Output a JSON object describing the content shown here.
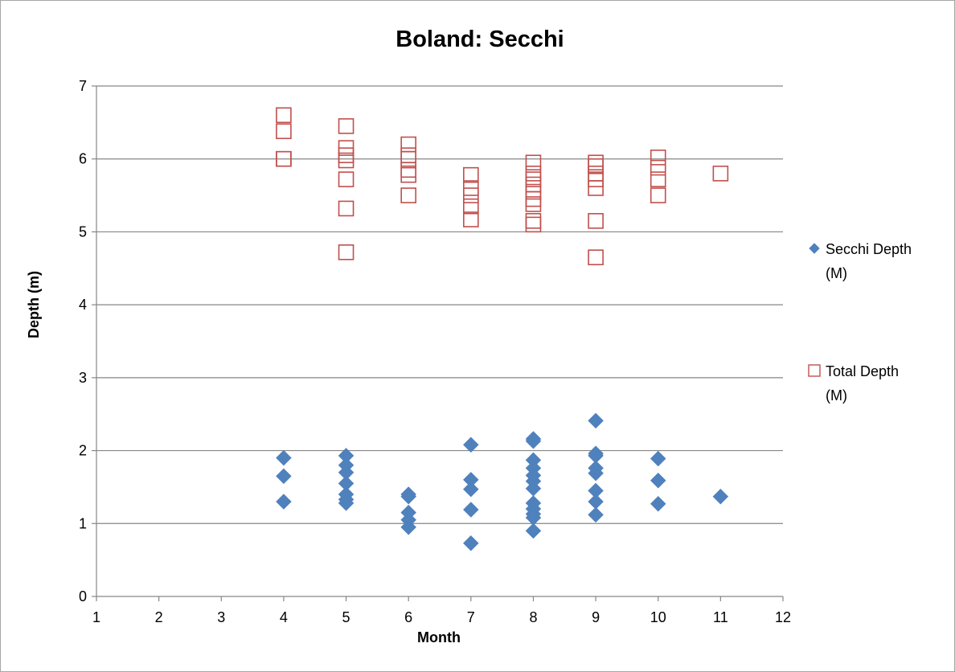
{
  "chart_data": {
    "type": "scatter",
    "title": "Boland:  Secchi",
    "xlabel": "Month",
    "ylabel": "Depth (m)",
    "xlim": [
      1,
      12
    ],
    "ylim": [
      0,
      7
    ],
    "x_ticks": [
      1,
      2,
      3,
      4,
      5,
      6,
      7,
      8,
      9,
      10,
      11,
      12
    ],
    "y_ticks": [
      0,
      1,
      2,
      3,
      4,
      5,
      6,
      7
    ],
    "grid": "horizontal",
    "legend_position": "right",
    "series": [
      {
        "name": "Secchi Depth (M)",
        "legend_lines": [
          "Secchi Depth",
          "(M)"
        ],
        "marker": "diamond",
        "color": "#4f81bd",
        "points": [
          [
            4,
            1.9
          ],
          [
            4,
            1.65
          ],
          [
            4,
            1.3
          ],
          [
            5,
            1.93
          ],
          [
            5,
            1.8
          ],
          [
            5,
            1.7
          ],
          [
            5,
            1.55
          ],
          [
            5,
            1.4
          ],
          [
            5,
            1.33
          ],
          [
            5,
            1.28
          ],
          [
            6,
            1.4
          ],
          [
            6,
            1.37
          ],
          [
            6,
            1.15
          ],
          [
            6,
            1.05
          ],
          [
            6,
            0.95
          ],
          [
            7,
            2.08
          ],
          [
            7,
            1.6
          ],
          [
            7,
            1.47
          ],
          [
            7,
            1.19
          ],
          [
            7,
            0.73
          ],
          [
            8,
            2.16
          ],
          [
            8,
            2.13
          ],
          [
            8,
            1.87
          ],
          [
            8,
            1.76
          ],
          [
            8,
            1.66
          ],
          [
            8,
            1.58
          ],
          [
            8,
            1.48
          ],
          [
            8,
            1.28
          ],
          [
            8,
            1.2
          ],
          [
            8,
            1.13
          ],
          [
            8,
            1.08
          ],
          [
            8,
            0.9
          ],
          [
            9,
            2.41
          ],
          [
            9,
            1.96
          ],
          [
            9,
            1.93
          ],
          [
            9,
            1.76
          ],
          [
            9,
            1.69
          ],
          [
            9,
            1.45
          ],
          [
            9,
            1.3
          ],
          [
            9,
            1.12
          ],
          [
            10,
            1.89
          ],
          [
            10,
            1.59
          ],
          [
            10,
            1.27
          ],
          [
            11,
            1.37
          ]
        ]
      },
      {
        "name": "Total Depth (M)",
        "legend_lines": [
          "Total Depth",
          "(M)"
        ],
        "marker": "square-open",
        "color": "#c0504d",
        "points": [
          [
            4,
            6.6
          ],
          [
            4,
            6.38
          ],
          [
            4,
            6.0
          ],
          [
            4,
            6.0
          ],
          [
            5,
            6.45
          ],
          [
            5,
            6.15
          ],
          [
            5,
            6.05
          ],
          [
            5,
            5.98
          ],
          [
            5,
            5.72
          ],
          [
            5,
            5.32
          ],
          [
            5,
            4.72
          ],
          [
            6,
            6.2
          ],
          [
            6,
            6.05
          ],
          [
            6,
            6.0
          ],
          [
            6,
            5.85
          ],
          [
            6,
            5.78
          ],
          [
            6,
            5.5
          ],
          [
            7,
            5.78
          ],
          [
            7,
            5.6
          ],
          [
            7,
            5.5
          ],
          [
            7,
            5.35
          ],
          [
            7,
            5.17
          ],
          [
            8,
            5.95
          ],
          [
            8,
            5.8
          ],
          [
            8,
            5.72
          ],
          [
            8,
            5.65
          ],
          [
            8,
            5.55
          ],
          [
            8,
            5.45
          ],
          [
            8,
            5.38
          ],
          [
            8,
            5.15
          ],
          [
            8,
            5.1
          ],
          [
            9,
            5.95
          ],
          [
            9,
            5.9
          ],
          [
            9,
            5.8
          ],
          [
            9,
            5.72
          ],
          [
            9,
            5.6
          ],
          [
            9,
            5.15
          ],
          [
            9,
            4.65
          ],
          [
            10,
            6.02
          ],
          [
            10,
            5.88
          ],
          [
            10,
            5.72
          ],
          [
            10,
            5.5
          ],
          [
            11,
            5.8
          ]
        ]
      }
    ]
  }
}
